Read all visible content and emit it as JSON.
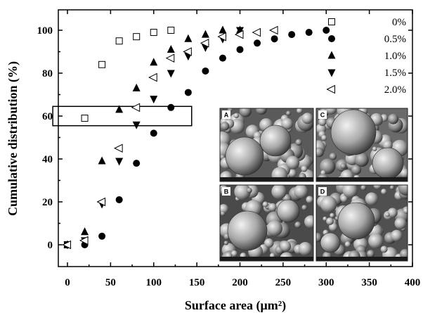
{
  "chart_data": {
    "type": "scatter",
    "xlabel": "Surface area (μm²)",
    "ylabel": "Cumulative distribution (%)",
    "xlim": [
      -5,
      400
    ],
    "ylim": [
      -10,
      110
    ],
    "xticks": [
      0,
      50,
      100,
      150,
      200,
      250,
      300,
      350,
      400
    ],
    "yticks": [
      0,
      20,
      40,
      60,
      80,
      100
    ],
    "legend_position": "top-right",
    "series": [
      {
        "name": "0%",
        "marker": "open-square",
        "points": [
          [
            0,
            0
          ],
          [
            20,
            59
          ],
          [
            40,
            84
          ],
          [
            60,
            95
          ],
          [
            80,
            97
          ],
          [
            100,
            99
          ],
          [
            120,
            100
          ]
        ]
      },
      {
        "name": "0.5%",
        "marker": "filled-circle",
        "points": [
          [
            0,
            0
          ],
          [
            20,
            0
          ],
          [
            40,
            4
          ],
          [
            60,
            21
          ],
          [
            80,
            38
          ],
          [
            100,
            52
          ],
          [
            120,
            64
          ],
          [
            140,
            71
          ],
          [
            160,
            81
          ],
          [
            180,
            87
          ],
          [
            200,
            91
          ],
          [
            220,
            94
          ],
          [
            240,
            96
          ],
          [
            260,
            98
          ],
          [
            280,
            99
          ],
          [
            300,
            100
          ]
        ]
      },
      {
        "name": "1.0%",
        "marker": "filled-triangle-up",
        "points": [
          [
            0,
            0
          ],
          [
            20,
            6
          ],
          [
            40,
            39
          ],
          [
            60,
            63
          ],
          [
            80,
            73
          ],
          [
            100,
            85
          ],
          [
            120,
            91
          ],
          [
            140,
            96
          ],
          [
            160,
            98
          ],
          [
            180,
            100
          ],
          [
            200,
            100
          ]
        ]
      },
      {
        "name": "1.5%",
        "marker": "filled-triangle-down",
        "points": [
          [
            0,
            0
          ],
          [
            20,
            2
          ],
          [
            40,
            19
          ],
          [
            60,
            39
          ],
          [
            80,
            56
          ],
          [
            100,
            68
          ],
          [
            120,
            80
          ],
          [
            140,
            88
          ],
          [
            160,
            92
          ],
          [
            180,
            96
          ],
          [
            200,
            100
          ]
        ]
      },
      {
        "name": "2.0%",
        "marker": "open-triangle-left",
        "points": [
          [
            0,
            0
          ],
          [
            20,
            2
          ],
          [
            40,
            20
          ],
          [
            60,
            45
          ],
          [
            80,
            64
          ],
          [
            100,
            78
          ],
          [
            120,
            87
          ],
          [
            140,
            90
          ],
          [
            160,
            94
          ],
          [
            180,
            97
          ],
          [
            200,
            98
          ],
          [
            220,
            99
          ],
          [
            240,
            100
          ]
        ]
      }
    ],
    "highlight_box": {
      "x_range": [
        -17,
        144
      ],
      "y_range": [
        55.5,
        64.5
      ]
    },
    "inset_panels": [
      "A",
      "C",
      "B",
      "D"
    ]
  }
}
